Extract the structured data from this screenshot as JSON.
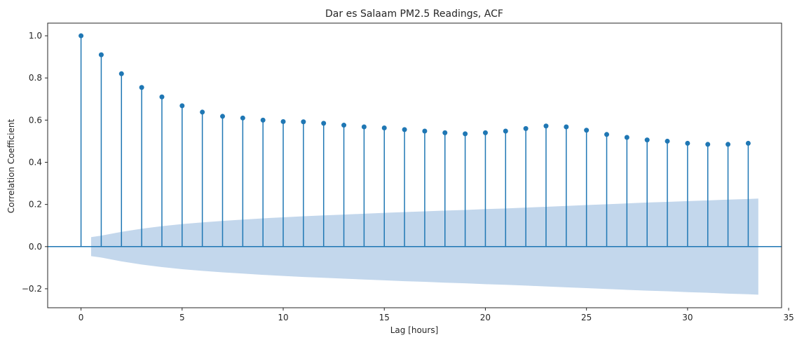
{
  "chart_data": {
    "type": "stem",
    "title": "Dar es Salaam PM2.5 Readings, ACF",
    "xlabel": "Lag [hours]",
    "ylabel": "Correlation Coefficient",
    "xlim": [
      -1.65,
      34.65
    ],
    "ylim": [
      -0.29,
      1.06
    ],
    "xticks": [
      0,
      5,
      10,
      15,
      20,
      25,
      30,
      35
    ],
    "xtick_labels": [
      "0",
      "5",
      "10",
      "15",
      "20",
      "25",
      "30",
      "35"
    ],
    "yticks": [
      -0.2,
      0.0,
      0.2,
      0.4,
      0.6,
      0.8,
      1.0
    ],
    "ytick_labels": [
      "−0.2",
      "0.0",
      "0.2",
      "0.4",
      "0.6",
      "0.8",
      "1.0"
    ],
    "x": [
      0,
      1,
      2,
      3,
      4,
      5,
      6,
      7,
      8,
      9,
      10,
      11,
      12,
      13,
      14,
      15,
      16,
      17,
      18,
      19,
      20,
      21,
      22,
      23,
      24,
      25,
      26,
      27,
      28,
      29,
      30,
      31,
      32,
      33
    ],
    "values": [
      1.0,
      0.91,
      0.82,
      0.755,
      0.71,
      0.668,
      0.638,
      0.618,
      0.61,
      0.6,
      0.593,
      0.592,
      0.585,
      0.576,
      0.568,
      0.563,
      0.555,
      0.548,
      0.54,
      0.535,
      0.54,
      0.548,
      0.56,
      0.572,
      0.568,
      0.552,
      0.532,
      0.518,
      0.506,
      0.5,
      0.49,
      0.485,
      0.485,
      0.49
    ],
    "confint": {
      "x": [
        0.5,
        1,
        2,
        3,
        4,
        5,
        6,
        7,
        8,
        9,
        10,
        11,
        12,
        13,
        14,
        15,
        16,
        17,
        18,
        19,
        20,
        21,
        22,
        23,
        24,
        25,
        26,
        27,
        28,
        29,
        30,
        31,
        32,
        33,
        33.5
      ],
      "upper": [
        0.045,
        0.052,
        0.07,
        0.085,
        0.097,
        0.107,
        0.115,
        0.122,
        0.128,
        0.134,
        0.139,
        0.144,
        0.148,
        0.152,
        0.156,
        0.16,
        0.164,
        0.167,
        0.171,
        0.174,
        0.178,
        0.181,
        0.185,
        0.189,
        0.193,
        0.197,
        0.201,
        0.205,
        0.209,
        0.212,
        0.216,
        0.219,
        0.223,
        0.226,
        0.228
      ]
    },
    "colors": {
      "stem": "#1f77b4",
      "band": "#c3d7ec",
      "axis": "#262626",
      "baseline": "#1f77b4"
    },
    "grid": false,
    "legend": "none"
  }
}
